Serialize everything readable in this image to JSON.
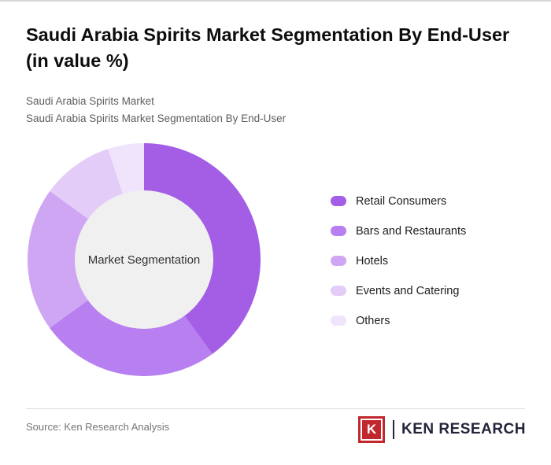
{
  "page": {
    "title": "Saudi Arabia Spirits Market Segmentation By End-User (in value %)",
    "subtitle_line1": "Saudi Arabia Spirits Market",
    "subtitle_line2": "Saudi Arabia Spirits Market Segmentation By End-User",
    "source": "Source: Ken Research Analysis"
  },
  "brand": {
    "logo_letter": "K",
    "logo_text": "KEN RESEARCH",
    "logo_color": "#c1272d",
    "text_color": "#23253a"
  },
  "chart_data": {
    "type": "pie",
    "donut": true,
    "title": "Saudi Arabia Spirits Market Segmentation By End-User (in value %)",
    "center_label": "Market Segmentation",
    "categories": [
      "Retail Consumers",
      "Bars and Restaurants",
      "Hotels",
      "Events and Catering",
      "Others"
    ],
    "values": [
      40,
      25,
      20,
      10,
      5
    ],
    "colors": [
      "#a45ee5",
      "#b87ff0",
      "#cfa6f3",
      "#e3cdf8",
      "#f0e4fc"
    ],
    "start_angle_deg": 0,
    "direction": "clockwise",
    "legend_position": "right",
    "hole_color": "#f0f0f0"
  }
}
